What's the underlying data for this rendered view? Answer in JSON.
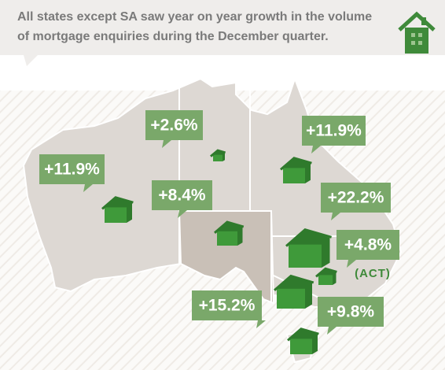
{
  "header": {
    "title_lines": [
      "All states except SA saw year on year growth in the volume",
      "of mortgage enquiries during the December quarter."
    ]
  },
  "regions": [
    {
      "label": "+2.6%"
    },
    {
      "label": "+11.9%"
    },
    {
      "label": "+11.9%"
    },
    {
      "label": "+8.4%"
    },
    {
      "label": "+22.2%"
    },
    {
      "label": "+4.8%",
      "note": "(ACT)"
    },
    {
      "label": "+15.2%"
    },
    {
      "label": "+9.8%"
    }
  ]
}
